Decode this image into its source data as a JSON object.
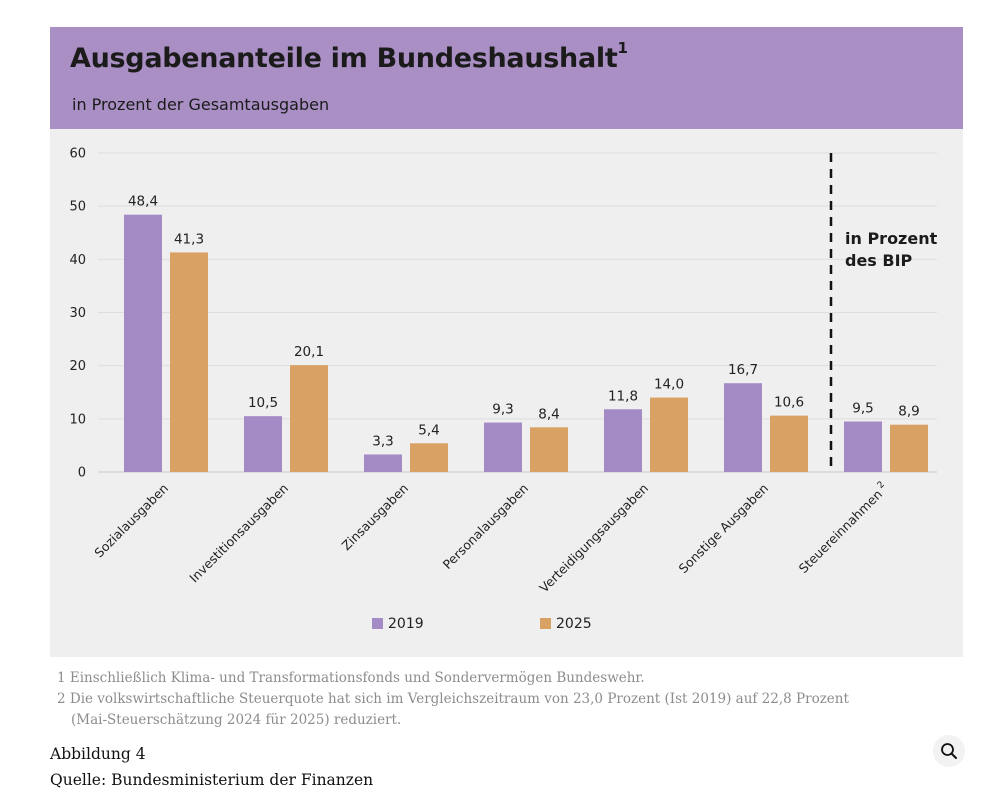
{
  "chart_data": {
    "type": "bar",
    "title": "Ausgabenanteile im Bundeshaushalt",
    "title_superscript": "1",
    "subtitle": "in Prozent der Gesamtausgaben",
    "categories": [
      "Sozialausgaben",
      "Investitionsausgaben",
      "Zinsausgaben",
      "Personalausgaben",
      "Verteidigungsausgaben",
      "Sonstige Ausgaben",
      "Steuereinnahmen"
    ],
    "category_superscripts": [
      "",
      "",
      "",
      "",
      "",
      "",
      "2"
    ],
    "series": [
      {
        "name": "2019",
        "color": "#a48bc6",
        "values": [
          48.4,
          10.5,
          3.3,
          9.3,
          11.8,
          16.7,
          9.5
        ],
        "labels": [
          "48,4",
          "10,5",
          "3,3",
          "9,3",
          "11,8",
          "16,7",
          "9,5"
        ]
      },
      {
        "name": "2025",
        "color": "#d9a163",
        "values": [
          41.3,
          20.1,
          5.4,
          8.4,
          14.0,
          10.6,
          8.9
        ],
        "labels": [
          "41,3",
          "20,1",
          "5,4",
          "8,4",
          "14,0",
          "10,6",
          "8,9"
        ]
      }
    ],
    "ylim": [
      0,
      60
    ],
    "yticks": [
      0,
      10,
      20,
      30,
      40,
      50,
      60
    ],
    "xlabel": "",
    "ylabel": "",
    "grid": true,
    "legend_position": "bottom-center",
    "annotation": {
      "lines": [
        "in Prozent",
        "des BIP"
      ],
      "applies_to": "Steuereinnahmen"
    }
  },
  "footnotes": [
    "1  Einschließlich  Klima- und Transformationsfonds und Sondervermögen Bundeswehr.",
    "2  Die volkswirtschaftliche Steuerquote hat sich im Vergleichszeitraum von 23,0 Prozent (Ist 2019) auf 22,8 Prozent",
    "(Mai-Steuerschätzung 2024 für 2025) reduziert."
  ],
  "caption": {
    "figure": "Abbildung 4",
    "source": "Quelle: Bundesministerium der Finanzen"
  },
  "zoom_icon": "magnifier-icon"
}
